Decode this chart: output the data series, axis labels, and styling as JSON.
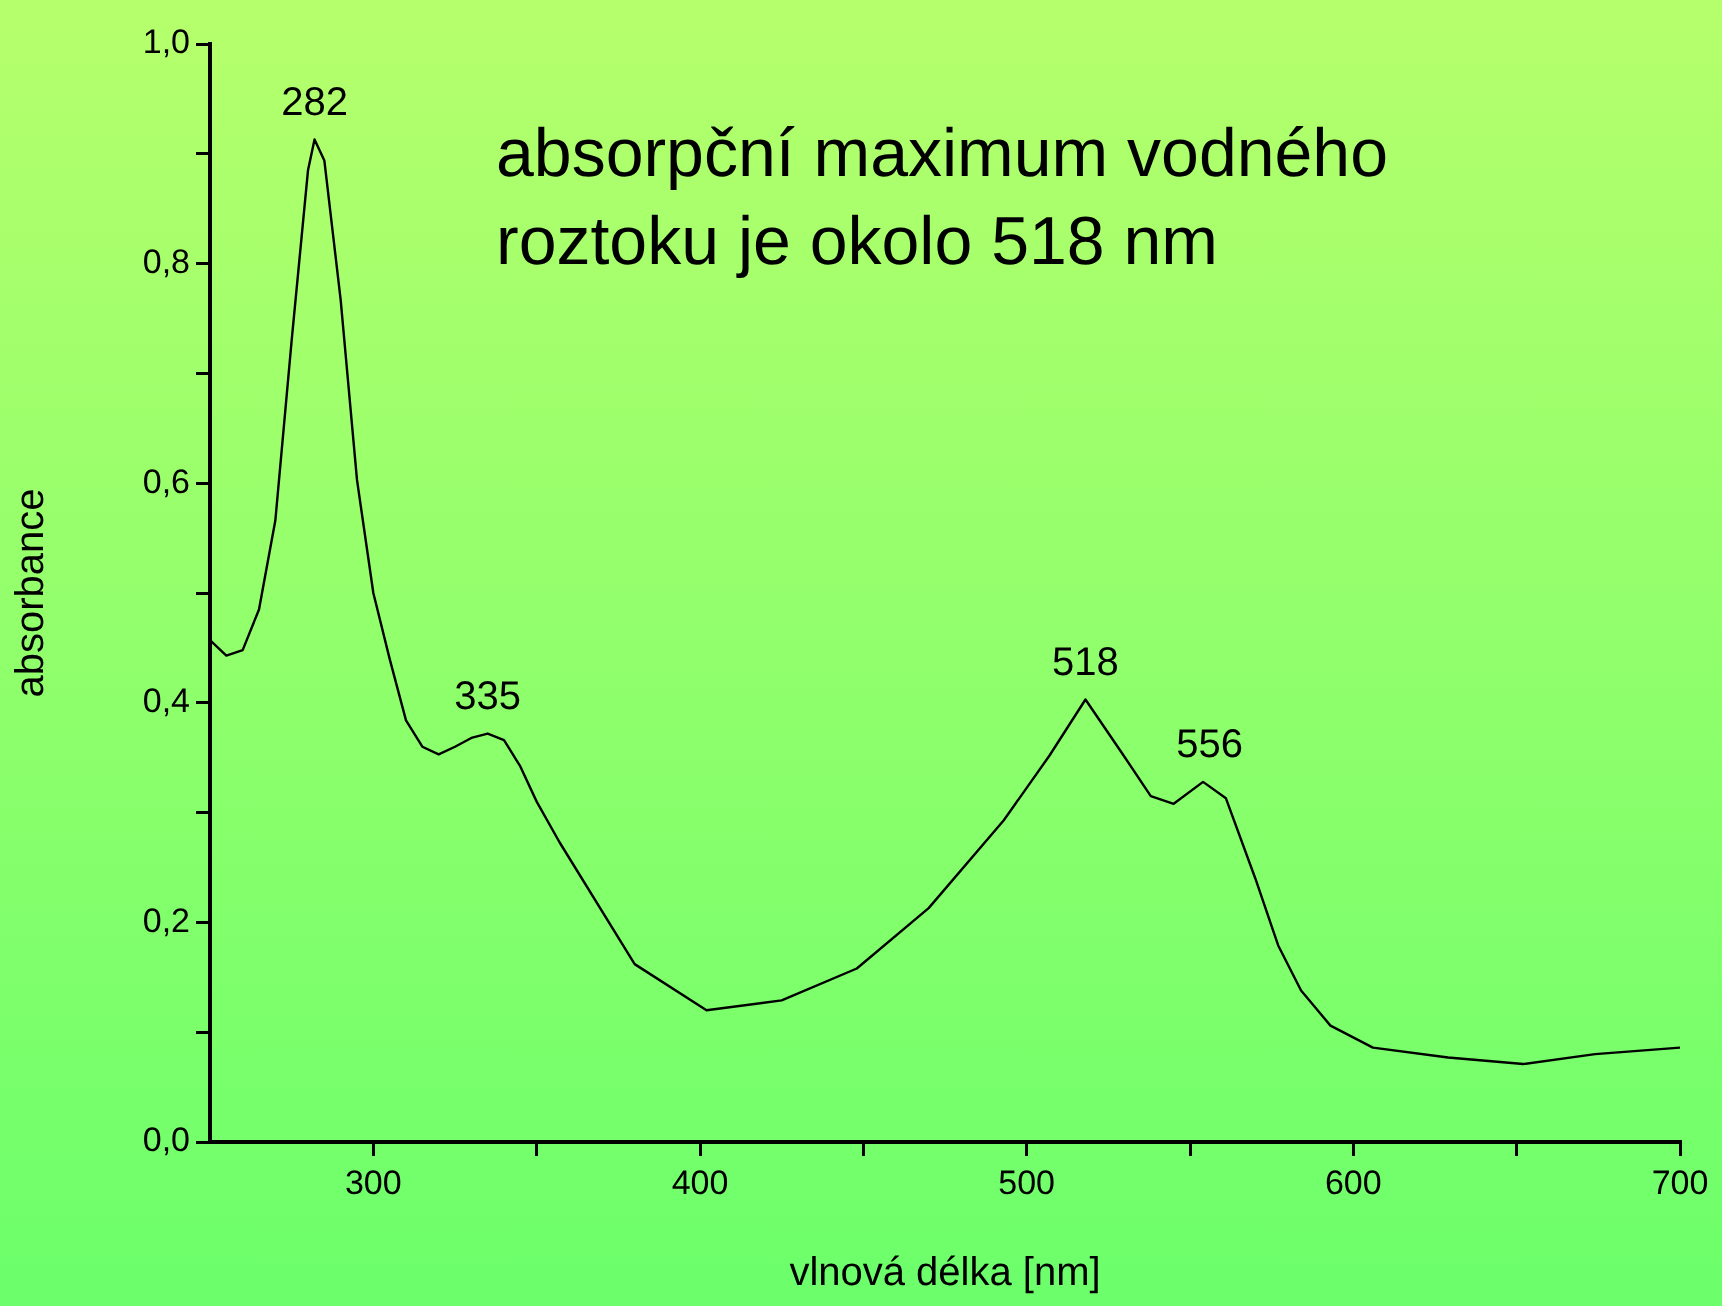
{
  "chart_data": {
    "type": "line",
    "xlabel": "vlnová délka [nm]",
    "ylabel": "absorbance",
    "x": [
      250,
      255,
      260,
      265,
      270,
      275,
      280,
      282,
      285,
      290,
      295,
      300,
      305,
      310,
      315,
      320,
      325,
      330,
      335,
      340,
      345,
      350,
      357,
      380,
      402,
      425,
      448,
      470,
      493,
      507,
      518,
      529,
      538,
      545,
      554,
      561,
      570,
      577,
      584,
      593,
      606,
      629,
      652,
      674,
      700
    ],
    "series": [
      {
        "color": "#000000",
        "values": [
          0.457,
          0.443,
          0.448,
          0.485,
          0.566,
          0.73,
          0.885,
          0.913,
          0.894,
          0.767,
          0.603,
          0.5,
          0.44,
          0.384,
          0.36,
          0.353,
          0.36,
          0.368,
          0.372,
          0.366,
          0.342,
          0.31,
          0.273,
          0.162,
          0.12,
          0.129,
          0.158,
          0.213,
          0.293,
          0.352,
          0.403,
          0.355,
          0.315,
          0.308,
          0.328,
          0.313,
          0.24,
          0.179,
          0.138,
          0.106,
          0.086,
          0.077,
          0.071,
          0.08,
          0.086
        ]
      }
    ],
    "xlim": [
      250,
      700
    ],
    "xticks": [
      300,
      {
        "value": 350,
        "label": null
      },
      400,
      {
        "value": 450,
        "label": null
      },
      500,
      {
        "value": 550,
        "label": null
      },
      600,
      {
        "value": 650,
        "label": null
      },
      700
    ],
    "ylim": [
      0,
      1
    ],
    "yticks": [
      {
        "value": 0,
        "label": "0,0"
      },
      {
        "value": 0.1,
        "label": null
      },
      {
        "value": 0.2,
        "label": "0,2"
      },
      {
        "value": 0.3,
        "label": null
      },
      {
        "value": 0.4,
        "label": "0,4"
      },
      {
        "value": 0.5,
        "label": null
      },
      {
        "value": 0.6,
        "label": "0,6"
      },
      {
        "value": 0.7,
        "label": null
      },
      {
        "value": 0.8,
        "label": "0,8"
      },
      {
        "value": 0.9,
        "label": null
      },
      {
        "value": 1,
        "label": "1,0"
      }
    ],
    "grid": false,
    "legend": false,
    "marker": "none",
    "line_style": "solid",
    "annotations": [
      "absorpční maximum vodného\nroztoku je okolo 518 nm",
      {
        "text": "282",
        "x": 282,
        "y": 0.913
      },
      {
        "text": "335",
        "x": 335,
        "y": 0.372
      },
      {
        "text": "518",
        "x": 518,
        "y": 0.403
      },
      {
        "text": "556",
        "x": 556,
        "y": 0.328
      }
    ]
  }
}
